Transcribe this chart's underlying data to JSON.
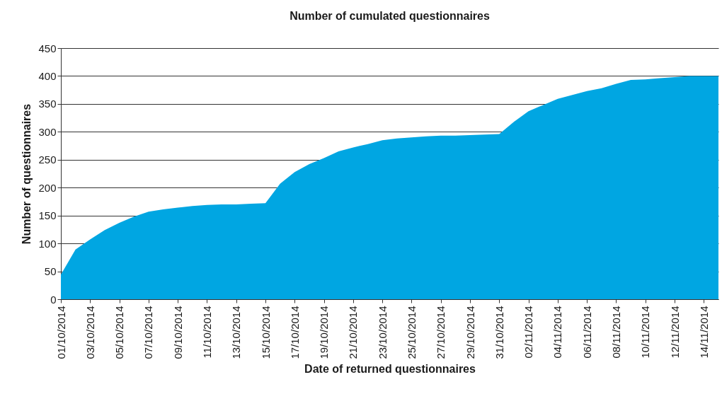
{
  "chart_data": {
    "type": "area",
    "title": "Number of cumulated questionnaires",
    "xlabel": "Date of returned questionnaires",
    "ylabel": "Number of questionnaires",
    "categories": [
      "01/10/2014",
      null,
      "03/10/2014",
      null,
      "05/10/2014",
      null,
      "07/10/2014",
      null,
      "09/10/2014",
      null,
      "11/10/2014",
      null,
      "13/10/2014",
      null,
      "15/10/2014",
      null,
      "17/10/2014",
      null,
      "19/10/2014",
      null,
      "21/10/2014",
      null,
      "23/10/2014",
      null,
      "25/10/2014",
      null,
      "27/10/2014",
      null,
      "29/10/2014",
      null,
      "31/10/2014",
      null,
      "02/11/2014",
      null,
      "04/11/2014",
      null,
      "06/11/2014",
      null,
      "08/11/2014",
      null,
      "10/11/2014",
      null,
      "12/11/2014",
      null,
      "14/11/2014",
      null
    ],
    "values": [
      44,
      89,
      107,
      124,
      137,
      148,
      157,
      161,
      164,
      167,
      169,
      170,
      170,
      171,
      172,
      207,
      228,
      242,
      253,
      265,
      272,
      278,
      285,
      288,
      290,
      292,
      293,
      293,
      294,
      295,
      296,
      318,
      337,
      348,
      359,
      366,
      373,
      378,
      386,
      393,
      394,
      396,
      398,
      400,
      400,
      400
    ],
    "color": "#00a6e2",
    "ylim": [
      0,
      450
    ],
    "yticks": [
      0,
      50,
      100,
      150,
      200,
      250,
      300,
      350,
      400,
      450
    ],
    "grid": "y"
  }
}
